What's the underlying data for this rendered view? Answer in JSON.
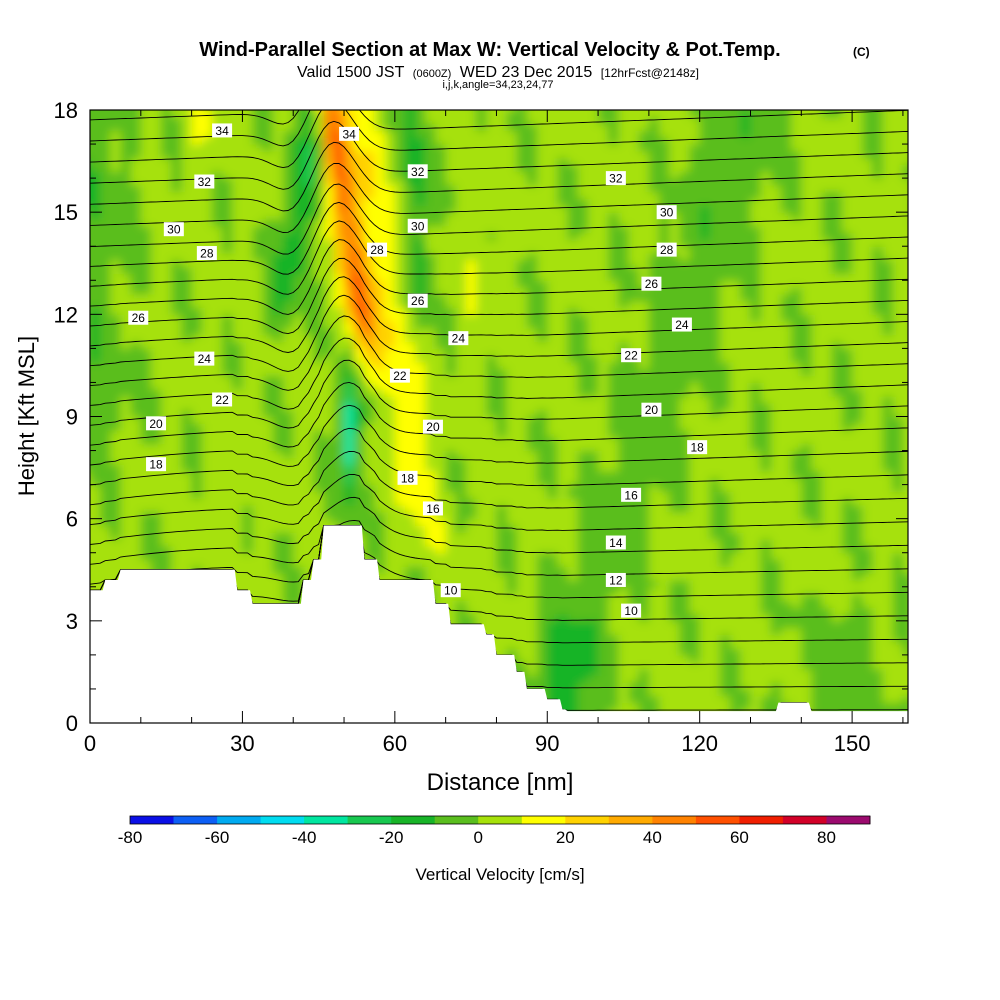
{
  "chart_data": {
    "type": "heatmap",
    "title": "Wind-Parallel Section at Max W: Vertical Velocity & Pot.Temp.",
    "title_tag": "(C)",
    "subtitle_main": "Valid 1500 JST",
    "subtitle_utc": "(0600Z)",
    "subtitle_date": "WED 23 Dec 2015",
    "subtitle_fcst": "[12hrFcst@2148z]",
    "subtitle_ijk": "i,j,k,angle=34,23,24,77",
    "xlabel": "Distance [nm]",
    "ylabel": "Height [Kft MSL]",
    "xlim": [
      0,
      161
    ],
    "ylim": [
      0,
      18
    ],
    "xticks": [
      0,
      30,
      60,
      90,
      120,
      150
    ],
    "yticks": [
      0,
      3,
      6,
      9,
      12,
      15,
      18
    ],
    "colorbar": {
      "label": "Vertical Velocity [cm/s]",
      "levels": [
        -80,
        -70,
        -60,
        -50,
        -40,
        -30,
        -20,
        -10,
        0,
        10,
        20,
        30,
        40,
        50,
        60,
        70,
        80,
        90
      ],
      "colors": [
        "#0a0fe6",
        "#0d5ff5",
        "#00aaf0",
        "#00dcf0",
        "#00e6a0",
        "#18c850",
        "#18b428",
        "#5abe1e",
        "#a6e10a",
        "#ffff00",
        "#ffd200",
        "#ffaa00",
        "#ff8200",
        "#ff5000",
        "#f01e00",
        "#d20028",
        "#9b0a6e",
        "#6e0aa0"
      ],
      "ticks": [
        -80,
        -60,
        -40,
        -20,
        0,
        20,
        40,
        60,
        80
      ]
    },
    "contour_labels": [
      {
        "text": "34",
        "x": 26,
        "y": 17.4
      },
      {
        "text": "34",
        "x": 51,
        "y": 17.3
      },
      {
        "text": "32",
        "x": 22.5,
        "y": 15.9
      },
      {
        "text": "32",
        "x": 64.5,
        "y": 16.2
      },
      {
        "text": "32",
        "x": 103.5,
        "y": 16.0
      },
      {
        "text": "30",
        "x": 16.5,
        "y": 14.5
      },
      {
        "text": "30",
        "x": 64.5,
        "y": 14.6
      },
      {
        "text": "30",
        "x": 113.5,
        "y": 15.0
      },
      {
        "text": "28",
        "x": 23,
        "y": 13.8
      },
      {
        "text": "28",
        "x": 56.5,
        "y": 13.9
      },
      {
        "text": "28",
        "x": 113.5,
        "y": 13.9
      },
      {
        "text": "26",
        "x": 9.5,
        "y": 11.9
      },
      {
        "text": "26",
        "x": 64.5,
        "y": 12.4
      },
      {
        "text": "26",
        "x": 110.5,
        "y": 12.9
      },
      {
        "text": "24",
        "x": 22.5,
        "y": 10.7
      },
      {
        "text": "24",
        "x": 72.5,
        "y": 11.3
      },
      {
        "text": "24",
        "x": 116.5,
        "y": 11.7
      },
      {
        "text": "22",
        "x": 26,
        "y": 9.5
      },
      {
        "text": "22",
        "x": 61,
        "y": 10.2
      },
      {
        "text": "22",
        "x": 106.5,
        "y": 10.8
      },
      {
        "text": "20",
        "x": 13,
        "y": 8.8
      },
      {
        "text": "20",
        "x": 67.5,
        "y": 8.7
      },
      {
        "text": "20",
        "x": 110.5,
        "y": 9.2
      },
      {
        "text": "18",
        "x": 13,
        "y": 7.6
      },
      {
        "text": "18",
        "x": 62.5,
        "y": 7.2
      },
      {
        "text": "18",
        "x": 119.5,
        "y": 8.1
      },
      {
        "text": "16",
        "x": 67.5,
        "y": 6.3
      },
      {
        "text": "16",
        "x": 106.5,
        "y": 6.7
      },
      {
        "text": "14",
        "x": 103.5,
        "y": 5.3
      },
      {
        "text": "12",
        "x": 103.5,
        "y": 4.2
      },
      {
        "text": "10",
        "x": 71,
        "y": 3.9
      },
      {
        "text": "10",
        "x": 106.5,
        "y": 3.3
      }
    ]
  }
}
